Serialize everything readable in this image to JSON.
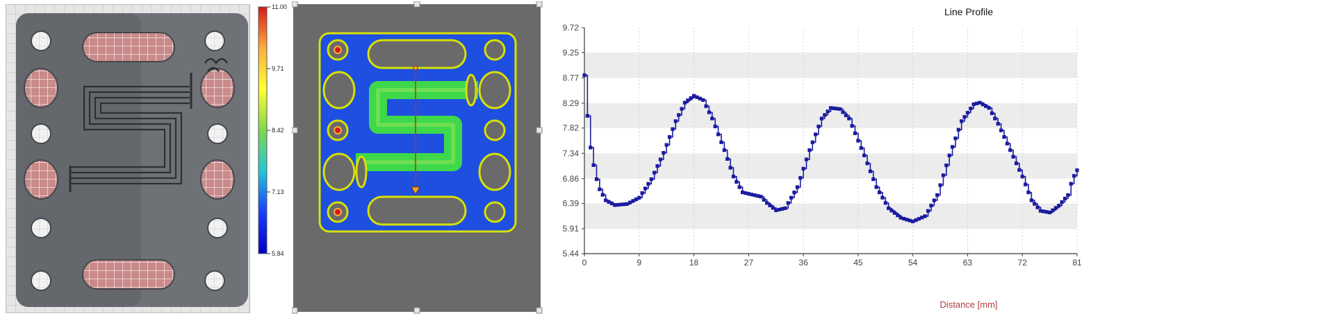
{
  "colorbar": {
    "ticks": [
      "11.00",
      "9.71",
      "8.42",
      "7.13",
      "5.84"
    ],
    "colors": [
      "#d7191c",
      "#fdae3b",
      "#ffff33",
      "#7fd84a",
      "#1fc7d9",
      "#1a3cff",
      "#0000c8"
    ]
  },
  "heatmap": {
    "background": "#6a6a6a",
    "plate_color": "#1e4fe0",
    "contour_color": "#d8e000",
    "channel_color": "#3ed84a",
    "line_color": "#b03030",
    "marker_color": "#f5a623"
  },
  "chart_data": {
    "type": "line",
    "title": "Line Profile",
    "xlabel": "Distance [mm]",
    "ylabel": "",
    "xlim": [
      0,
      81
    ],
    "ylim": [
      5.44,
      9.72
    ],
    "x_ticks": [
      "0",
      "9",
      "18",
      "27",
      "36",
      "45",
      "54",
      "63",
      "72",
      "81"
    ],
    "y_ticks": [
      "5.44",
      "5.91",
      "6.39",
      "6.86",
      "7.34",
      "7.82",
      "8.29",
      "8.77",
      "9.25",
      "9.72"
    ],
    "grid": true,
    "series_color": "#1a1aa0",
    "anchors": [
      [
        0.0,
        8.82
      ],
      [
        0.5,
        8.05
      ],
      [
        1.0,
        7.45
      ],
      [
        1.6,
        7.05
      ],
      [
        2.3,
        6.7
      ],
      [
        3.5,
        6.45
      ],
      [
        5.0,
        6.36
      ],
      [
        7.0,
        6.38
      ],
      [
        9.0,
        6.5
      ],
      [
        11.0,
        6.85
      ],
      [
        13.0,
        7.35
      ],
      [
        15.0,
        7.95
      ],
      [
        16.5,
        8.3
      ],
      [
        18.0,
        8.43
      ],
      [
        19.5,
        8.35
      ],
      [
        21.0,
        8.0
      ],
      [
        23.0,
        7.4
      ],
      [
        24.5,
        6.9
      ],
      [
        26.0,
        6.6
      ],
      [
        27.5,
        6.56
      ],
      [
        29.0,
        6.52
      ],
      [
        30.0,
        6.4
      ],
      [
        31.5,
        6.26
      ],
      [
        33.0,
        6.3
      ],
      [
        35.0,
        6.7
      ],
      [
        37.0,
        7.4
      ],
      [
        39.0,
        8.0
      ],
      [
        40.5,
        8.2
      ],
      [
        42.0,
        8.18
      ],
      [
        43.5,
        8.0
      ],
      [
        46.0,
        7.3
      ],
      [
        48.0,
        6.7
      ],
      [
        50.0,
        6.3
      ],
      [
        52.0,
        6.12
      ],
      [
        54.0,
        6.05
      ],
      [
        56.0,
        6.15
      ],
      [
        58.0,
        6.55
      ],
      [
        60.0,
        7.3
      ],
      [
        62.0,
        7.95
      ],
      [
        64.0,
        8.27
      ],
      [
        65.0,
        8.3
      ],
      [
        66.5,
        8.2
      ],
      [
        68.0,
        7.9
      ],
      [
        70.0,
        7.4
      ],
      [
        72.0,
        6.9
      ],
      [
        73.5,
        6.45
      ],
      [
        75.0,
        6.25
      ],
      [
        76.5,
        6.22
      ],
      [
        78.0,
        6.35
      ],
      [
        79.5,
        6.55
      ],
      [
        80.2,
        6.85
      ],
      [
        81.0,
        7.02
      ]
    ]
  }
}
